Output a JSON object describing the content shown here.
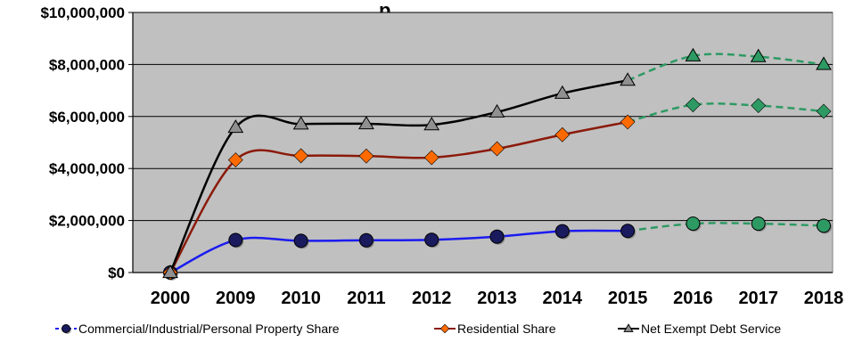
{
  "chart_data": {
    "type": "line",
    "title_fragment": "p",
    "categories": [
      "2000",
      "2009",
      "2010",
      "2011",
      "2012",
      "2013",
      "2014",
      "2015",
      "2016",
      "2017",
      "2018"
    ],
    "projection_start_index": 7,
    "ylim": [
      0,
      10000000
    ],
    "yticks": [
      0,
      2000000,
      4000000,
      6000000,
      8000000,
      10000000
    ],
    "ytick_labels": [
      "$0",
      "$2,000,000",
      "$4,000,000",
      "$6,000,000",
      "$8,000,000",
      "$10,000,000"
    ],
    "grid": true,
    "legend_placement": "bottom",
    "plot_background": "#c0c0c0",
    "projection_color": "#2e9a63",
    "series": [
      {
        "name": "Commercial/Industrial/Personal Property Share",
        "color": "#1b1bf0",
        "marker": "circle",
        "marker_color": "#1a1a5e",
        "values": [
          0,
          1250000,
          1220000,
          1240000,
          1260000,
          1380000,
          1590000,
          1600000,
          1880000,
          1880000,
          1800000
        ]
      },
      {
        "name": "Residential Share",
        "color": "#8b1a0a",
        "marker": "diamond",
        "marker_color": "#ff6a00",
        "values": [
          0,
          4330000,
          4490000,
          4480000,
          4420000,
          4760000,
          5300000,
          5790000,
          6450000,
          6420000,
          6200000
        ]
      },
      {
        "name": "Net Exempt Debt Service",
        "color": "#000000",
        "marker": "triangle",
        "marker_color": "#909090",
        "values": [
          0,
          5580000,
          5710000,
          5720000,
          5680000,
          6170000,
          6890000,
          7390000,
          8330000,
          8300000,
          8000000
        ]
      }
    ]
  }
}
